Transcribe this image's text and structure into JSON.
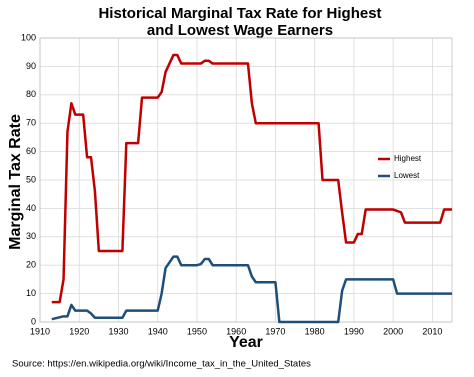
{
  "chart_data": {
    "type": "line",
    "title": [
      "Historical Marginal Tax Rate for Highest",
      "and Lowest Wage Earners"
    ],
    "x_label": "Year",
    "y_label": "Marginal Tax Rate",
    "source": "Source: https://en.wikipedia.org/wiki/Income_tax_in_the_United_States",
    "xlim": [
      1910,
      2015
    ],
    "xticks": [
      1910,
      1920,
      1930,
      1940,
      1950,
      1960,
      1970,
      1980,
      1990,
      2000,
      2010
    ],
    "ylim": [
      0,
      100
    ],
    "yticks": [
      0,
      10,
      20,
      30,
      40,
      50,
      60,
      70,
      80,
      90,
      100
    ],
    "grid": true,
    "legend": "right",
    "series": [
      {
        "name": "Highest",
        "color": "#c00000",
        "x": [
          1913,
          1915,
          1916,
          1917,
          1918,
          1919,
          1921,
          1922,
          1923,
          1924,
          1925,
          1931,
          1932,
          1935,
          1936,
          1940,
          1941,
          1942,
          1944,
          1945,
          1946,
          1951,
          1952,
          1953,
          1954,
          1963,
          1964,
          1965,
          1981,
          1982,
          1986,
          1987,
          1988,
          1990,
          1991,
          1992,
          1993,
          2000,
          2001,
          2002,
          2003,
          2012,
          2013,
          2015
        ],
        "values": [
          7,
          7,
          15,
          67,
          77,
          73,
          73,
          58,
          58,
          46,
          25,
          25,
          63,
          63,
          79,
          79,
          81,
          88,
          94,
          94,
          91,
          91,
          92,
          92,
          91,
          91,
          77,
          70,
          70,
          50,
          50,
          38.5,
          28,
          28,
          31,
          31,
          39.6,
          39.6,
          39.1,
          38.6,
          35,
          35,
          39.6,
          39.6
        ]
      },
      {
        "name": "Lowest",
        "color": "#1f4e79",
        "x": [
          1913,
          1916,
          1917,
          1918,
          1919,
          1922,
          1923,
          1924,
          1931,
          1932,
          1940,
          1941,
          1942,
          1944,
          1945,
          1946,
          1950,
          1951,
          1952,
          1953,
          1954,
          1963,
          1964,
          1965,
          1970,
          1971,
          1986,
          1987,
          1988,
          2000,
          2001,
          2015
        ],
        "values": [
          1,
          2,
          2,
          6,
          4,
          4,
          3,
          1.5,
          1.5,
          4,
          4,
          10,
          19,
          23,
          23,
          20,
          20,
          20.4,
          22.2,
          22.2,
          20,
          20,
          16,
          14,
          14,
          0,
          0,
          11,
          15,
          15,
          10,
          10
        ]
      }
    ]
  }
}
